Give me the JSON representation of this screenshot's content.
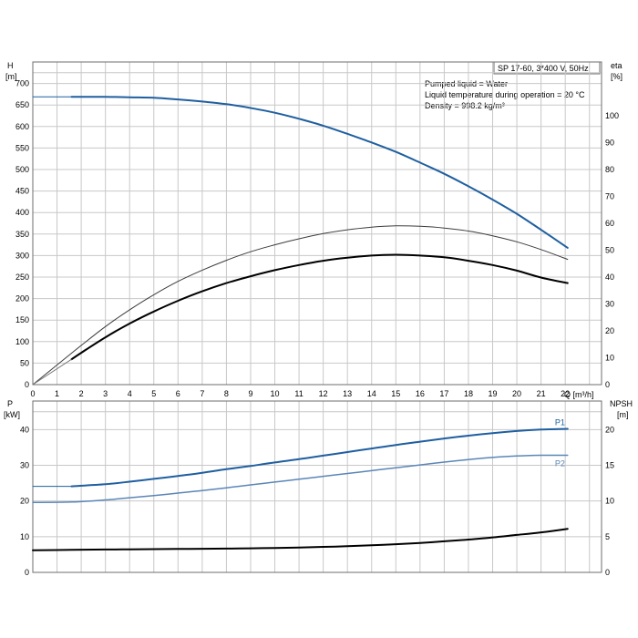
{
  "header": {
    "model": "SP 17-60, 3*400 V, 50Hz",
    "info_lines": [
      "Pumped liquid = Water",
      "Liquid temperature during operation = 20 °C",
      "Density = 998.2 kg/m³"
    ]
  },
  "chart_data": [
    {
      "type": "line",
      "xlabel": "Q [m³/h]",
      "ylabel_line1": "H",
      "ylabel_line2": "[m]",
      "y2label_line1": "eta",
      "y2label_line2": "[%]",
      "xlim": [
        0,
        23.5
      ],
      "ylim": [
        0,
        750
      ],
      "y2lim": [
        0,
        120
      ],
      "x_ticks": [
        0,
        1,
        2,
        3,
        4,
        5,
        6,
        7,
        8,
        9,
        10,
        11,
        12,
        13,
        14,
        15,
        16,
        17,
        18,
        19,
        20,
        21,
        22
      ],
      "y_ticks": [
        0,
        50,
        100,
        150,
        200,
        250,
        300,
        350,
        400,
        450,
        500,
        550,
        600,
        650,
        700
      ],
      "y2_ticks": [
        0,
        10,
        20,
        30,
        40,
        50,
        60,
        70,
        80,
        90,
        100
      ],
      "series": [
        {
          "axis": "y",
          "color": "#1f5fa0",
          "width": 2,
          "dash": false,
          "x": [
            1.6,
            3,
            4,
            5,
            6,
            7,
            8,
            9,
            10,
            11,
            12,
            13,
            14,
            15,
            16,
            17,
            18,
            19,
            20,
            21,
            22.1
          ],
          "y": [
            669,
            669,
            668,
            667,
            663,
            658,
            652,
            643,
            632,
            618,
            602,
            583,
            563,
            541,
            516,
            490,
            461,
            430,
            397,
            360,
            318
          ]
        },
        {
          "axis": "y",
          "color": "#3c3c3c",
          "width": 1,
          "dash": false,
          "x": [
            1.6,
            2,
            3,
            4,
            5,
            6,
            7,
            8,
            9,
            10,
            11,
            12,
            13,
            14,
            15,
            16,
            17,
            18,
            19,
            20,
            21,
            22.1
          ],
          "y": [
            73,
            91,
            135,
            174,
            209,
            240,
            266,
            289,
            309,
            325,
            339,
            351,
            360,
            366,
            369,
            368,
            364,
            357,
            346,
            332,
            314,
            291
          ]
        },
        {
          "axis": "y",
          "color": "#000000",
          "width": 2,
          "dash": false,
          "x": [
            1.6,
            2,
            3,
            4,
            5,
            6,
            7,
            8,
            9,
            10,
            11,
            12,
            13,
            14,
            15,
            16,
            17,
            18,
            19,
            20,
            21,
            22.1
          ],
          "y": [
            59,
            74,
            110,
            142,
            170,
            195,
            217,
            236,
            252,
            266,
            278,
            288,
            295,
            300,
            302,
            300,
            296,
            288,
            278,
            265,
            249,
            236
          ]
        },
        {
          "axis": "y",
          "color": "#ffffff",
          "width": 1,
          "dash": true,
          "x": [
            0,
            1.6
          ],
          "y": [
            0,
            59
          ]
        },
        {
          "axis": "y",
          "color": "#1f5fa0",
          "width": 1,
          "dash": false,
          "x": [
            0,
            1.6
          ],
          "y": [
            669,
            669
          ]
        }
      ]
    },
    {
      "type": "line",
      "ylabel_line1": "P",
      "ylabel_line2": "[kW]",
      "y2label_line1": "NPSH",
      "y2label_line2": "[m]",
      "xlim": [
        0,
        23.5
      ],
      "ylim": [
        0,
        48
      ],
      "y2lim": [
        0,
        24
      ],
      "y_ticks": [
        0,
        10,
        20,
        30,
        40
      ],
      "y2_ticks": [
        0,
        5,
        10,
        15,
        20
      ],
      "series": [
        {
          "name": "P1",
          "axis": "y",
          "color": "#1f5fa0",
          "width": 2,
          "dash": false,
          "x": [
            1.6,
            3,
            4,
            5,
            6,
            7,
            8,
            9,
            10,
            11,
            12,
            13,
            14,
            15,
            16,
            17,
            18,
            19,
            20,
            21,
            22.1
          ],
          "y": [
            24.1,
            24.7,
            25.4,
            26.2,
            27.0,
            27.9,
            28.9,
            29.8,
            30.8,
            31.7,
            32.7,
            33.7,
            34.7,
            35.7,
            36.6,
            37.5,
            38.3,
            39.0,
            39.6,
            40.0,
            40.2
          ]
        },
        {
          "axis": "y",
          "color": "#1f5fa0",
          "width": 1,
          "dash": false,
          "x": [
            0,
            1.6
          ],
          "y": [
            24.1,
            24.1
          ]
        },
        {
          "name": "P2",
          "axis": "y",
          "color": "#5b86b7",
          "width": 1.5,
          "dash": false,
          "x": [
            0,
            1.6,
            3,
            4,
            5,
            6,
            7,
            8,
            9,
            10,
            11,
            12,
            13,
            14,
            15,
            16,
            17,
            18,
            19,
            20,
            21,
            22.1
          ],
          "y": [
            19.6,
            19.7,
            20.3,
            20.9,
            21.5,
            22.2,
            22.9,
            23.7,
            24.5,
            25.3,
            26.1,
            26.9,
            27.7,
            28.5,
            29.3,
            30.1,
            30.9,
            31.6,
            32.2,
            32.6,
            32.8,
            32.8
          ]
        },
        {
          "axis": "y2",
          "color": "#000000",
          "width": 2,
          "dash": false,
          "x": [
            0,
            1.6,
            3,
            4,
            5,
            6,
            7,
            8,
            9,
            10,
            11,
            12,
            13,
            14,
            15,
            16,
            17,
            18,
            19,
            20,
            21,
            22.1
          ],
          "y": [
            3.1,
            3.15,
            3.2,
            3.22,
            3.25,
            3.28,
            3.3,
            3.33,
            3.37,
            3.42,
            3.48,
            3.57,
            3.67,
            3.8,
            3.95,
            4.12,
            4.35,
            4.6,
            4.9,
            5.25,
            5.6,
            6.1
          ]
        }
      ]
    }
  ]
}
